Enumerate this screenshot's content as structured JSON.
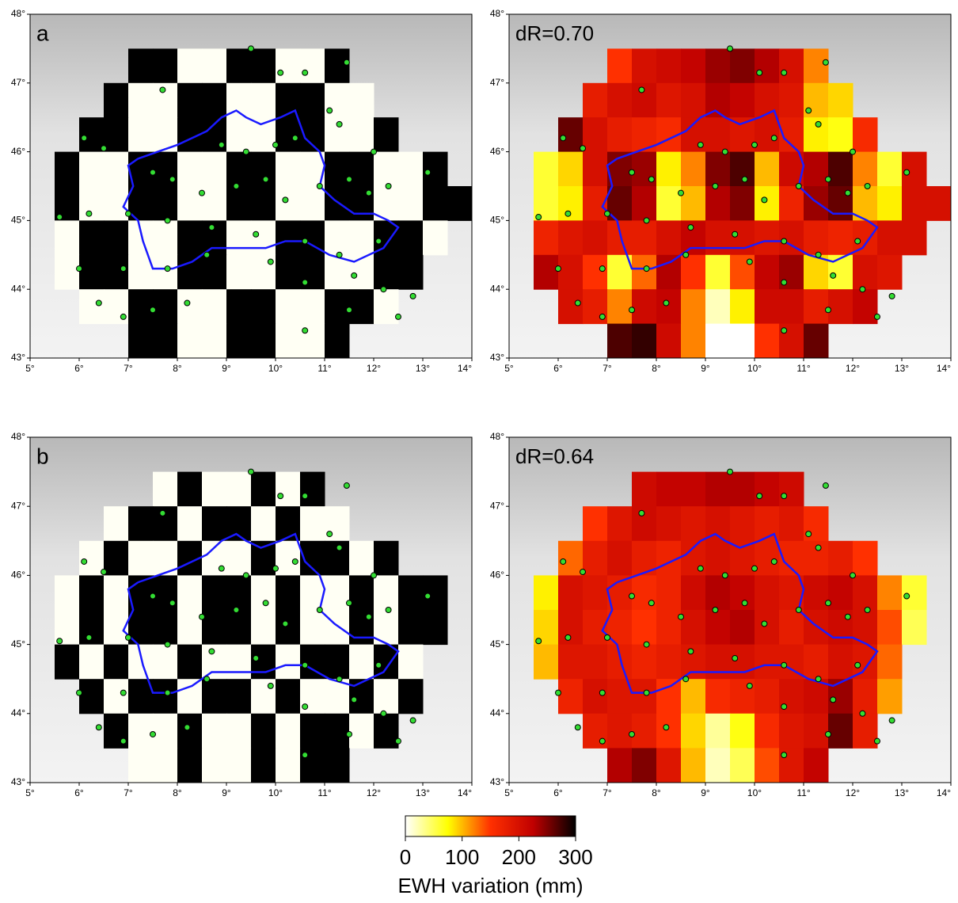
{
  "chart_data": [
    {
      "type": "checkerboard",
      "label": "a",
      "xlim": [
        5,
        14
      ],
      "ylim": [
        43,
        48
      ],
      "xticks": [
        {
          "value": 5,
          "label": "5°"
        },
        {
          "value": 6,
          "label": "6°"
        },
        {
          "value": 7,
          "label": "7°"
        },
        {
          "value": 8,
          "label": "8°"
        },
        {
          "value": 9,
          "label": "9°"
        },
        {
          "value": 10,
          "label": "10°"
        },
        {
          "value": 11,
          "label": "11°"
        },
        {
          "value": 12,
          "label": "12°"
        },
        {
          "value": 13,
          "label": "13°"
        },
        {
          "value": 14,
          "label": "14°"
        }
      ],
      "yticks": [
        {
          "value": 43,
          "label": "43°"
        },
        {
          "value": 44,
          "label": "44°"
        },
        {
          "value": 45,
          "label": "45°"
        },
        {
          "value": 46,
          "label": "46°"
        },
        {
          "value": 47,
          "label": "47°"
        },
        {
          "value": 48,
          "label": "48°"
        }
      ]
    },
    {
      "type": "heatmap",
      "label": "dR=0.70",
      "xlim": [
        5,
        14
      ],
      "ylim": [
        43,
        48
      ],
      "xticks": [
        {
          "value": 5,
          "label": "5°"
        },
        {
          "value": 6,
          "label": "6°"
        },
        {
          "value": 7,
          "label": "7°"
        },
        {
          "value": 8,
          "label": "8°"
        },
        {
          "value": 9,
          "label": "9°"
        },
        {
          "value": 10,
          "label": "10°"
        },
        {
          "value": 11,
          "label": "11°"
        },
        {
          "value": 12,
          "label": "12°"
        },
        {
          "value": 13,
          "label": "13°"
        },
        {
          "value": 14,
          "label": "14°"
        }
      ],
      "yticks": [
        {
          "value": 43,
          "label": "43°"
        },
        {
          "value": 44,
          "label": "44°"
        },
        {
          "value": 45,
          "label": "45°"
        },
        {
          "value": 46,
          "label": "46°"
        },
        {
          "value": 47,
          "label": "47°"
        },
        {
          "value": 48,
          "label": "48°"
        }
      ],
      "x": [
        5.75,
        6.25,
        6.75,
        7.25,
        7.75,
        8.25,
        8.75,
        9.25,
        9.75,
        10.25,
        10.75,
        11.25,
        11.75,
        12.25,
        12.75,
        13.25,
        13.75
      ],
      "y": [
        47.25,
        46.75,
        46.25,
        45.75,
        45.25,
        44.75,
        44.25,
        43.75,
        43.25
      ],
      "values": [
        [
          null,
          null,
          null,
          150,
          200,
          210,
          220,
          240,
          250,
          230,
          200,
          120,
          null,
          null,
          null,
          null,
          null
        ],
        [
          null,
          null,
          180,
          200,
          210,
          190,
          200,
          230,
          220,
          200,
          190,
          100,
          90,
          null,
          null,
          null,
          null
        ],
        [
          null,
          260,
          200,
          180,
          170,
          160,
          200,
          200,
          190,
          200,
          180,
          80,
          70,
          160,
          null,
          null,
          null
        ],
        [
          60,
          90,
          200,
          250,
          240,
          80,
          120,
          250,
          270,
          100,
          210,
          230,
          270,
          120,
          60,
          200,
          null
        ],
        [
          60,
          80,
          180,
          260,
          230,
          60,
          100,
          230,
          250,
          80,
          170,
          240,
          260,
          100,
          80,
          200,
          200
        ],
        [
          170,
          190,
          200,
          180,
          180,
          200,
          220,
          200,
          200,
          190,
          200,
          180,
          170,
          180,
          200,
          200,
          null
        ],
        [
          230,
          200,
          150,
          60,
          130,
          230,
          150,
          60,
          140,
          220,
          240,
          90,
          60,
          200,
          190,
          null,
          null
        ],
        [
          null,
          200,
          180,
          120,
          210,
          220,
          120,
          20,
          80,
          210,
          210,
          180,
          200,
          220,
          null,
          null,
          null
        ],
        [
          null,
          null,
          null,
          270,
          280,
          210,
          120,
          0,
          0,
          150,
          200,
          260,
          null,
          null,
          null,
          null,
          null
        ]
      ]
    },
    {
      "type": "checkerboard",
      "label": "b",
      "xlim": [
        5,
        14
      ],
      "ylim": [
        43,
        48
      ],
      "xticks": [
        {
          "value": 5,
          "label": "5°"
        },
        {
          "value": 6,
          "label": "6°"
        },
        {
          "value": 7,
          "label": "7°"
        },
        {
          "value": 8,
          "label": "8°"
        },
        {
          "value": 9,
          "label": "9°"
        },
        {
          "value": 10,
          "label": "10°"
        },
        {
          "value": 11,
          "label": "11°"
        },
        {
          "value": 12,
          "label": "12°"
        },
        {
          "value": 13,
          "label": "13°"
        },
        {
          "value": 14,
          "label": "14°"
        }
      ],
      "yticks": [
        {
          "value": 43,
          "label": "43°"
        },
        {
          "value": 44,
          "label": "44°"
        },
        {
          "value": 45,
          "label": "45°"
        },
        {
          "value": 46,
          "label": "46°"
        },
        {
          "value": 47,
          "label": "47°"
        },
        {
          "value": 48,
          "label": "48°"
        }
      ]
    },
    {
      "type": "heatmap",
      "label": "dR=0.64",
      "xlim": [
        5,
        14
      ],
      "ylim": [
        43,
        48
      ],
      "xticks": [
        {
          "value": 5,
          "label": "5°"
        },
        {
          "value": 6,
          "label": "6°"
        },
        {
          "value": 7,
          "label": "7°"
        },
        {
          "value": 8,
          "label": "8°"
        },
        {
          "value": 9,
          "label": "9°"
        },
        {
          "value": 10,
          "label": "10°"
        },
        {
          "value": 11,
          "label": "11°"
        },
        {
          "value": 12,
          "label": "12°"
        },
        {
          "value": 13,
          "label": "13°"
        },
        {
          "value": 14,
          "label": "14°"
        }
      ],
      "yticks": [
        {
          "value": 43,
          "label": "43°"
        },
        {
          "value": 44,
          "label": "44°"
        },
        {
          "value": 45,
          "label": "45°"
        },
        {
          "value": 46,
          "label": "46°"
        },
        {
          "value": 47,
          "label": "47°"
        },
        {
          "value": 48,
          "label": "48°"
        }
      ],
      "x": [
        5.75,
        6.25,
        6.75,
        7.25,
        7.75,
        8.25,
        8.75,
        9.25,
        9.75,
        10.25,
        10.75,
        11.25,
        11.75,
        12.25,
        12.75,
        13.25,
        13.75
      ],
      "y": [
        47.25,
        46.75,
        46.25,
        45.75,
        45.25,
        44.75,
        44.25,
        43.75,
        43.25
      ],
      "values": [
        [
          null,
          null,
          null,
          null,
          210,
          220,
          220,
          230,
          230,
          220,
          210,
          null,
          null,
          null,
          null,
          null,
          null
        ],
        [
          null,
          null,
          150,
          190,
          210,
          200,
          190,
          200,
          190,
          180,
          190,
          160,
          null,
          null,
          null,
          null,
          null
        ],
        [
          null,
          130,
          180,
          200,
          180,
          170,
          190,
          200,
          190,
          180,
          170,
          170,
          180,
          150,
          null,
          null,
          null
        ],
        [
          80,
          200,
          190,
          180,
          160,
          170,
          210,
          230,
          220,
          200,
          190,
          210,
          220,
          200,
          120,
          60,
          null
        ],
        [
          90,
          200,
          180,
          170,
          150,
          170,
          200,
          220,
          230,
          200,
          180,
          200,
          210,
          200,
          140,
          50,
          null
        ],
        [
          100,
          190,
          190,
          180,
          170,
          180,
          190,
          200,
          200,
          190,
          190,
          180,
          200,
          190,
          130,
          null,
          null
        ],
        [
          null,
          170,
          200,
          190,
          190,
          150,
          100,
          160,
          170,
          180,
          200,
          210,
          240,
          180,
          110,
          null,
          null
        ],
        [
          null,
          null,
          180,
          190,
          180,
          150,
          90,
          30,
          70,
          160,
          190,
          200,
          260,
          180,
          null,
          null,
          null
        ],
        [
          null,
          null,
          null,
          230,
          250,
          190,
          100,
          20,
          50,
          140,
          190,
          220,
          null,
          null,
          null,
          null,
          null
        ]
      ]
    },
    {
      "type": "colorbar",
      "label": "EWH variation (mm)",
      "xlim": [
        0,
        300
      ],
      "xticks": [
        0,
        100,
        200,
        300
      ],
      "colors": [
        "#ffffff",
        "#ffff00",
        "#ff3000",
        "#c00000",
        "#000000"
      ]
    }
  ],
  "stations": {
    "lon": [
      9.5,
      10.1,
      10.6,
      11.45,
      7.7,
      11.1,
      11.3,
      12.0,
      9.4,
      8.9,
      10.0,
      10.4,
      6.1,
      6.5,
      7.5,
      7.9,
      8.5,
      9.2,
      9.8,
      10.2,
      10.9,
      11.5,
      11.9,
      12.3,
      13.1,
      5.6,
      6.2,
      7.0,
      7.8,
      8.7,
      9.6,
      10.6,
      11.3,
      12.1,
      6.0,
      6.9,
      7.8,
      8.6,
      9.9,
      10.6,
      11.6,
      12.2,
      6.4,
      7.5,
      8.2,
      10.6,
      11.5,
      12.8,
      6.9,
      12.5
    ],
    "lat": [
      47.5,
      47.15,
      47.15,
      47.3,
      46.9,
      46.6,
      46.4,
      46.0,
      46.0,
      46.1,
      46.1,
      46.2,
      46.2,
      46.05,
      45.7,
      45.6,
      45.4,
      45.5,
      45.6,
      45.3,
      45.5,
      45.6,
      45.4,
      45.5,
      45.7,
      45.05,
      45.1,
      45.1,
      45.0,
      44.9,
      44.8,
      44.7,
      44.5,
      44.7,
      44.3,
      44.3,
      44.3,
      44.5,
      44.4,
      44.1,
      44.2,
      44.0,
      43.8,
      43.7,
      43.8,
      43.4,
      43.7,
      43.9,
      43.6,
      43.6
    ]
  }
}
